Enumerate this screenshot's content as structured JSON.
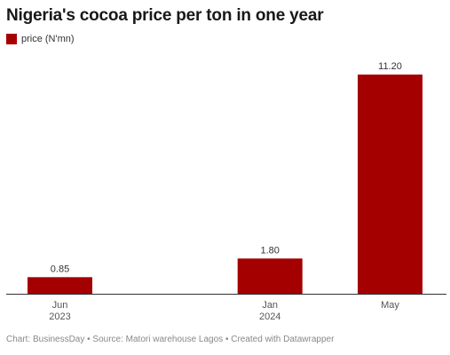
{
  "chart_data": {
    "type": "bar",
    "title": "Nigeria's cocoa price per ton in one year",
    "categories": [
      {
        "line1": "Jun",
        "line2": "2023"
      },
      {
        "line1": "Jan",
        "line2": "2024"
      },
      {
        "line1": "May",
        "line2": ""
      }
    ],
    "series": [
      {
        "name": "price (N'mn)",
        "color": "#a50000",
        "values": [
          0.85,
          1.8,
          11.2
        ],
        "value_labels": [
          "0.85",
          "1.80",
          "11.20"
        ]
      }
    ],
    "x_dates": [
      "2023-06",
      "2024-01",
      "2024-05"
    ],
    "ylim": [
      0,
      11.2
    ],
    "grid": false,
    "legend": "top-left"
  },
  "footer": "Chart: BusinessDay • Source: Matori warehouse Lagos • Created with Datawrapper"
}
